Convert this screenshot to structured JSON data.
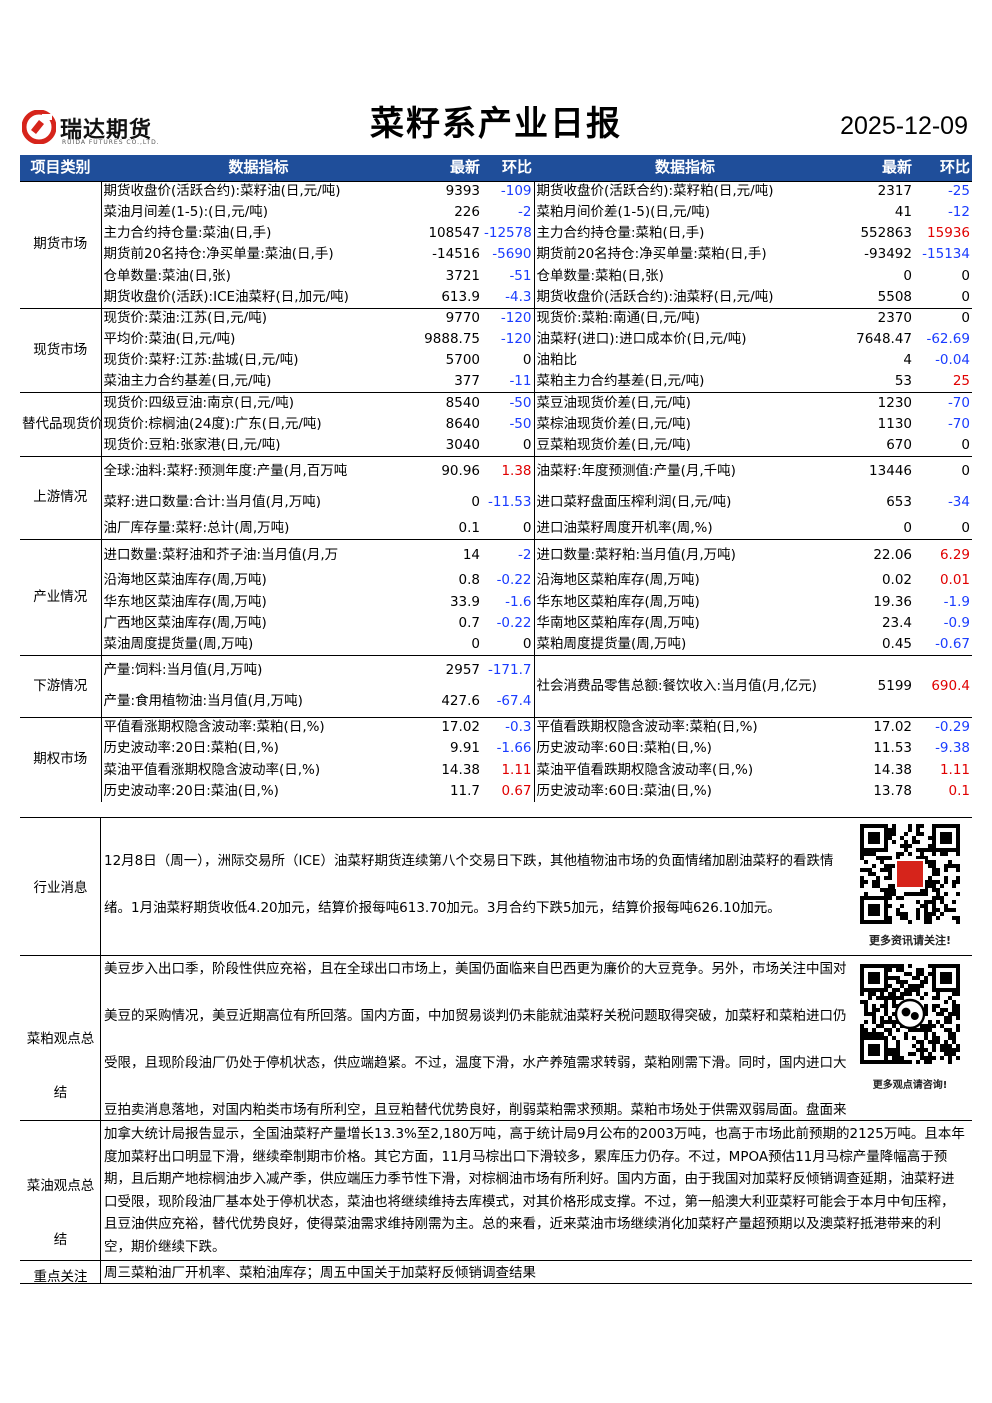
{
  "header": {
    "logo_text": "瑞达期货",
    "logo_en": "RUIDA FUTURES CO.,LTD.",
    "title": "菜籽系产业日报",
    "date": "2025-12-09"
  },
  "table": {
    "headers": [
      "项目类别",
      "数据指标",
      "最新",
      "环比",
      "数据指标",
      "最新",
      "环比"
    ],
    "groups": [
      {
        "category": "期货市场",
        "rows": [
          [
            "期货收盘价(活跃合约):菜籽油(日,元/吨)",
            "9393",
            "-109",
            "期货收盘价(活跃合约):菜籽粕(日,元/吨)",
            "2317",
            "-25"
          ],
          [
            "菜油月间差(1-5):(日,元/吨)",
            "226",
            "-2",
            "菜粕月间价差(1-5)(日,元/吨)",
            "41",
            "-12"
          ],
          [
            "主力合约持仓量:菜油(日,手)",
            "108547",
            "-12578",
            "主力合约持仓量:菜粕(日,手)",
            "552863",
            "15936"
          ],
          [
            "期货前20名持仓:净买单量:菜油(日,手)",
            "-14516",
            "-5690",
            "期货前20名持仓:净买单量:菜粕(日,手)",
            "-93492",
            "-15134"
          ],
          [
            "仓单数量:菜油(日,张)",
            "3721",
            "-51",
            "仓单数量:菜粕(日,张)",
            "0",
            "0"
          ],
          [
            "期货收盘价(活跃):ICE油菜籽(日,加元/吨)",
            "613.9",
            "-4.3",
            "期货收盘价(活跃合约):油菜籽(日,元/吨)",
            "5508",
            "0"
          ]
        ]
      },
      {
        "category": "现货市场",
        "rows": [
          [
            "现货价:菜油:江苏(日,元/吨)",
            "9770",
            "-120",
            "现货价:菜粕:南通(日,元/吨)",
            "2370",
            "0"
          ],
          [
            "平均价:菜油(日,元/吨)",
            "9888.75",
            "-120",
            "油菜籽(进口):进口成本价(日,元/吨)",
            "7648.47",
            "-62.69"
          ],
          [
            "现货价:菜籽:江苏:盐城(日,元/吨)",
            "5700",
            "0",
            "油粕比",
            "4",
            "-0.04"
          ],
          [
            "菜油主力合约基差(日,元/吨)",
            "377",
            "-11",
            "菜粕主力合约基差(日,元/吨)",
            "53",
            "25"
          ]
        ]
      },
      {
        "category": "替代品现货价格",
        "rows": [
          [
            "现货价:四级豆油:南京(日,元/吨)",
            "8540",
            "-50",
            "菜豆油现货价差(日,元/吨)",
            "1230",
            "-70"
          ],
          [
            "现货价:棕榈油(24度):广东(日,元/吨)",
            "8640",
            "-50",
            "菜棕油现货价差(日,元/吨)",
            "1130",
            "-70"
          ],
          [
            "现货价:豆粕:张家港(日,元/吨)",
            "3040",
            "0",
            "豆菜粕现货价差(日,元/吨)",
            "670",
            "0"
          ]
        ]
      },
      {
        "category": "上游情况",
        "rows": [
          [
            "全球:油料:菜籽:预测年度:产量(月,百万吨",
            "90.96",
            "1.38",
            "油菜籽:年度预测值:产量(月,千吨)",
            "13446",
            "0"
          ],
          [
            "菜籽:进口数量:合计:当月值(月,万吨)",
            "0",
            "-11.53",
            "进口菜籽盘面压榨利润(日,元/吨)",
            "653",
            "-34"
          ],
          [
            "油厂库存量:菜籽:总计(周,万吨)",
            "0.1",
            "0",
            "进口油菜籽周度开机率(周,%)",
            "0",
            "0"
          ]
        ]
      },
      {
        "category": "产业情况",
        "rows": [
          [
            "进口数量:菜籽油和芥子油:当月值(月,万",
            "14",
            "-2",
            "进口数量:菜籽粕:当月值(月,万吨)",
            "22.06",
            "6.29"
          ],
          [
            "沿海地区菜油库存(周,万吨)",
            "0.8",
            "-0.22",
            "沿海地区菜粕库存(周,万吨)",
            "0.02",
            "0.01"
          ],
          [
            "华东地区菜油库存(周,万吨)",
            "33.9",
            "-1.6",
            "华东地区菜粕库存(周,万吨)",
            "19.36",
            "-1.9"
          ],
          [
            "广西地区菜油库存(周,万吨)",
            "0.7",
            "-0.22",
            "华南地区菜粕库存(周,万吨)",
            "23.4",
            "-0.9"
          ],
          [
            "菜油周度提货量(周,万吨)",
            "0",
            "0",
            "菜粕周度提货量(周,万吨)",
            "0.45",
            "-0.67"
          ]
        ]
      },
      {
        "category": "下游情况",
        "rows": [
          [
            "产量:饲料:当月值(月,万吨)",
            "2957",
            "-171.7",
            "社会消费品零售总额:餐饮收入:当月值(月,亿元)",
            "5199",
            "690.4"
          ],
          [
            "产量:食用植物油:当月值(月,万吨)",
            "427.6",
            "-67.4",
            "",
            "",
            ""
          ]
        ]
      },
      {
        "category": "期权市场",
        "rows": [
          [
            "平值看涨期权隐含波动率:菜粕(日,%)",
            "17.02",
            "-0.3",
            "平值看跌期权隐含波动率:菜粕(日,%)",
            "17.02",
            "-0.29"
          ],
          [
            "历史波动率:20日:菜粕(日,%)",
            "9.91",
            "-1.66",
            "历史波动率:60日:菜粕(日,%)",
            "11.53",
            "-9.38"
          ],
          [
            "菜油平值看涨期权隐含波动率(日,%)",
            "14.38",
            "1.11",
            "菜油平值看跌期权隐含波动率(日,%)",
            "14.38",
            "1.11"
          ],
          [
            "历史波动率:20日:菜油(日,%)",
            "11.7",
            "0.67",
            "历史波动率:60日:菜油(日,%)",
            "13.78",
            "0.1"
          ]
        ]
      }
    ]
  },
  "sections": {
    "industry_news": {
      "label": "行业消息",
      "text": "12月8日（周一），洲际交易所（ICE）油菜籽期货连续第八个交易日下跌，其他植物油市场的负面情绪加剧油菜籽的看跌情绪。1月油菜籽期货收低4.20加元，结算价报每吨613.70加元。3月合约下跌5加元，结算价报每吨626.10加元。",
      "qr_caption": "更多资讯请关注!"
    },
    "meal_view": {
      "label": "菜粕观点总结",
      "text": "美豆步入出口季，阶段性供应充裕，且在全球出口市场上，美国仍面临来自巴西更为廉价的大豆竞争。另外，市场关注中国对美豆的采购情况，美豆近期高位有所回落。国内方面，中加贸易谈判仍未能就油菜籽关税问题取得突破，加菜籽和菜粕进口仍受限，且现阶段油厂仍处于停机状态，供应端趋紧。不过，温度下滑，水产养殖需求转弱，菜粕刚需下滑。同时，国内进口大豆拍卖消息落地，对国内粕类市场有所利空，且豆粕替代优势良好，削弱菜粕需求预期。菜粕市场处于供需双弱局面。盘面来看，受美豆下跌拖累，国内粕类同步下跌，近期菜粕总体维持偏弱震荡。关注中国对美豆的采购情况以及中加贸易政策能否迎来突破。",
      "qr_caption": "更多观点请咨询!"
    },
    "oil_view": {
      "label": "菜油观点总结",
      "text": "加拿大统计局报告显示，全国油菜籽产量增长13.3%至2,180万吨，高于统计局9月公布的2003万吨，也高于市场此前预期的2125万吨。且本年度加菜籽出口明显下滑，继续牵制期市价格。其它方面，11月马棕出口下滑较多，累库压力仍存。不过，MPOA预估11月马棕产量降幅高于预期，且后期产地棕榈油步入减产季，供应端压力季节性下滑，对棕榈油市场有所利好。国内方面，由于我国对加菜籽反倾销调查延期，油菜籽进口受限，现阶段油厂基本处于停机状态，菜油也将继续维持去库模式，对其价格形成支撑。不过，第一船澳大利亚菜籽可能会于本月中旬压榨，且豆油供应充裕，替代优势良好，使得菜油需求维持刚需为主。总的来看，近来菜油市场继续消化加菜籽产量超预期以及澳菜籽抵港带来的利空，期价继续下跌。"
    },
    "focus": {
      "label": "重点关注",
      "text": "周三菜粕油厂开机率、菜粕油库存；周五中国关于加菜籽反倾销调查结果"
    }
  }
}
